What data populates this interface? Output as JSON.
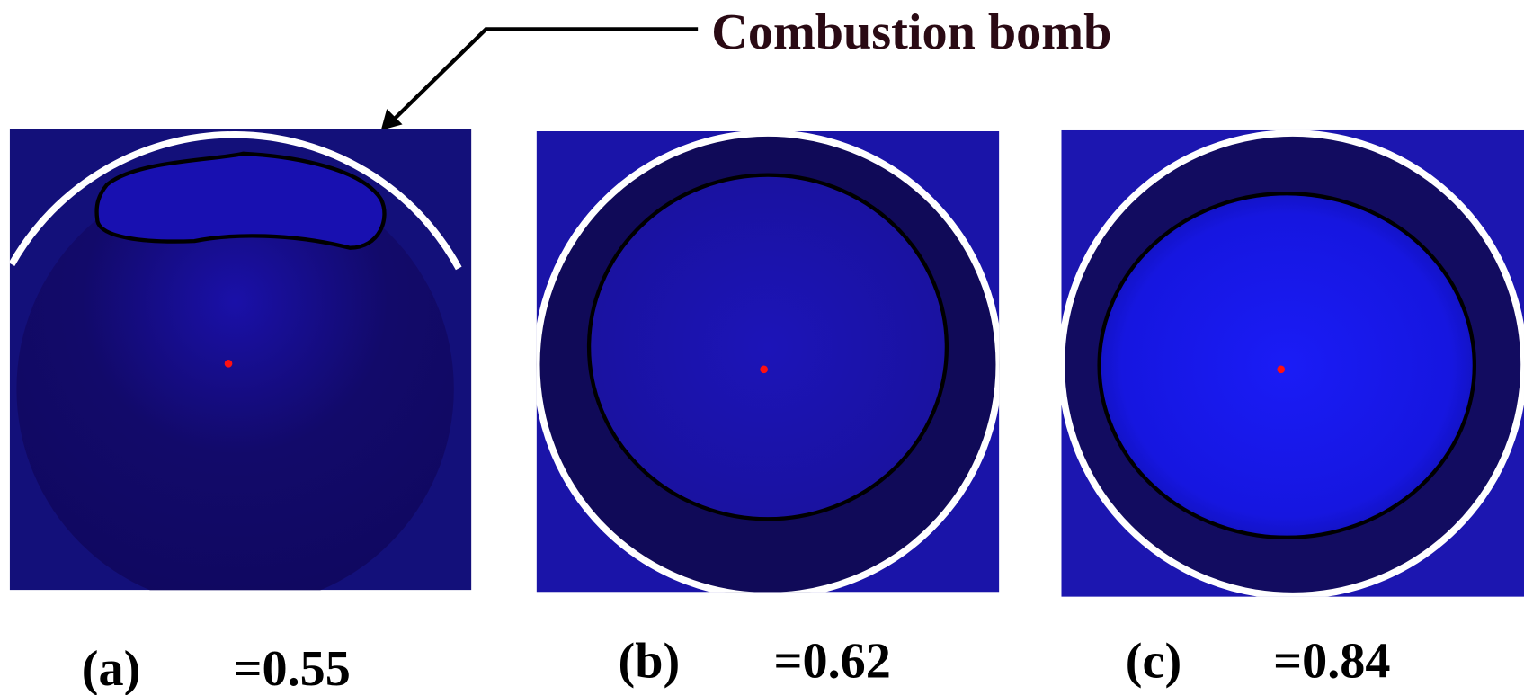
{
  "annotation": "Combustion bomb",
  "panels": [
    {
      "label": "(a)",
      "caption": "=0.55"
    },
    {
      "label": "(b)",
      "caption": "=0.62"
    },
    {
      "label": "(c)",
      "caption": "=0.84"
    }
  ]
}
